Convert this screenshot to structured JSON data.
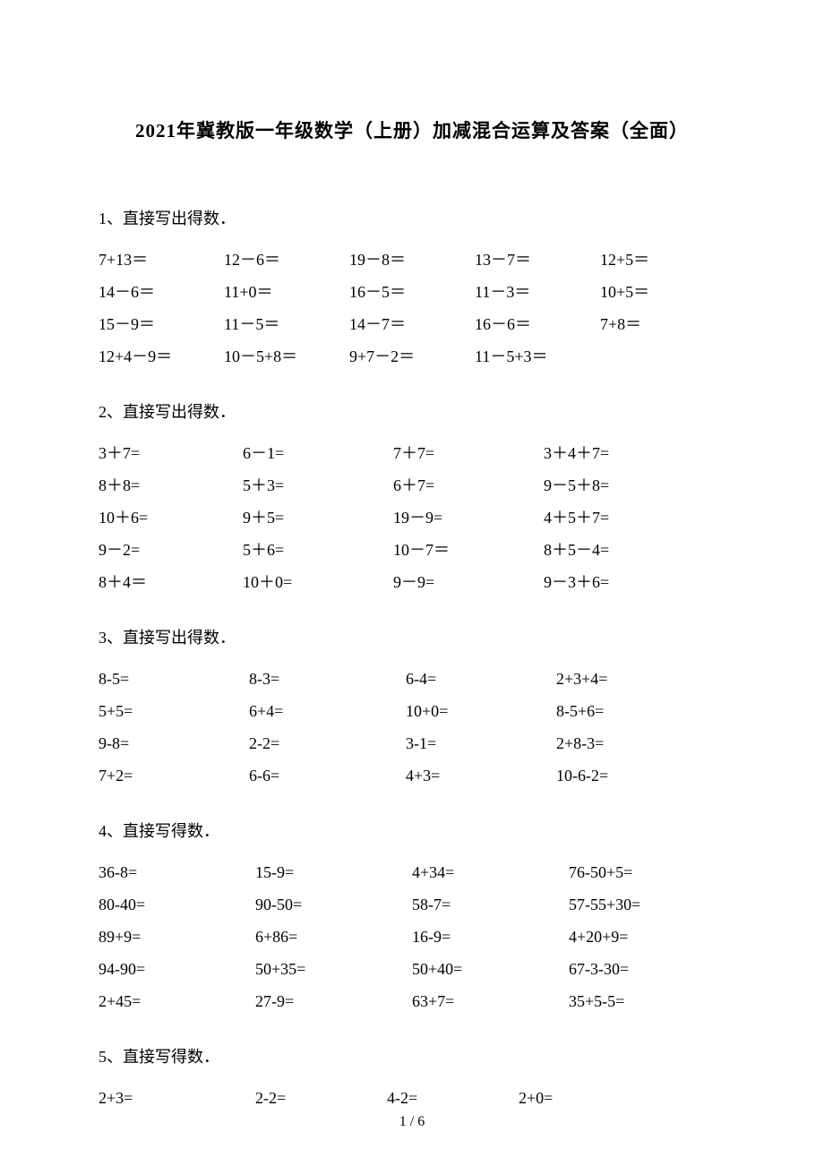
{
  "title": "2021年冀教版一年级数学（上册）加减混合运算及答案（全面）",
  "sections": [
    {
      "label": "1、直接写出得数．",
      "layout": "c5",
      "rows": [
        [
          "7+13＝",
          "12－6＝",
          "19－8＝",
          "13－7＝",
          "12+5＝"
        ],
        [
          "14－6＝",
          "11+0＝",
          "16－5＝",
          "11－3＝",
          "10+5＝"
        ],
        [
          "15－9＝",
          "11－5＝",
          "14－7＝",
          "16－6＝",
          "7+8＝"
        ],
        [
          "12+4－9＝",
          "10－5+8＝",
          "9+7－2＝",
          "11－5+3＝",
          ""
        ]
      ]
    },
    {
      "label": "2、直接写出得数．",
      "layout": "c4a",
      "rows": [
        [
          "3＋7=",
          "6－1=",
          "7＋7=",
          "3＋4＋7="
        ],
        [
          "8＋8=",
          "5＋3=",
          "6＋7=",
          "9－5＋8="
        ],
        [
          "10＋6=",
          "9＋5=",
          "19－9=",
          "4＋5＋7="
        ],
        [
          "9－2=",
          "5＋6=",
          "10－7＝",
          "8＋5－4="
        ],
        [
          "8＋4＝",
          "10＋0=",
          "9－9=",
          "9－3＋6="
        ]
      ]
    },
    {
      "label": "3、直接写出得数．",
      "layout": "c4b",
      "rows": [
        [
          "8-5=",
          "8-3=",
          "6-4=",
          "2+3+4="
        ],
        [
          "5+5=",
          "6+4=",
          "10+0=",
          "8-5+6="
        ],
        [
          "9-8=",
          "2-2=",
          "3-1=",
          "2+8-3="
        ],
        [
          "7+2=",
          "6-6=",
          "4+3=",
          "10-6-2="
        ]
      ]
    },
    {
      "label": "4、直接写得数．",
      "layout": "c4c",
      "rows": [
        [
          "36-8=",
          "15-9=",
          "4+34=",
          "76-50+5="
        ],
        [
          "80-40=",
          "90-50=",
          "58-7=",
          "57-55+30="
        ],
        [
          "89+9=",
          "6+86=",
          "16-9=",
          "4+20+9="
        ],
        [
          "94-90=",
          "50+35=",
          "50+40=",
          "67-3-30="
        ],
        [
          "2+45=",
          "27-9=",
          "63+7=",
          "35+5-5="
        ]
      ]
    },
    {
      "label": "5、直接写得数．",
      "layout": "c4d",
      "rows": [
        [
          "2+3=",
          "2-2=",
          "4-2=",
          "2+0="
        ]
      ]
    }
  ],
  "footer": "1 / 6"
}
